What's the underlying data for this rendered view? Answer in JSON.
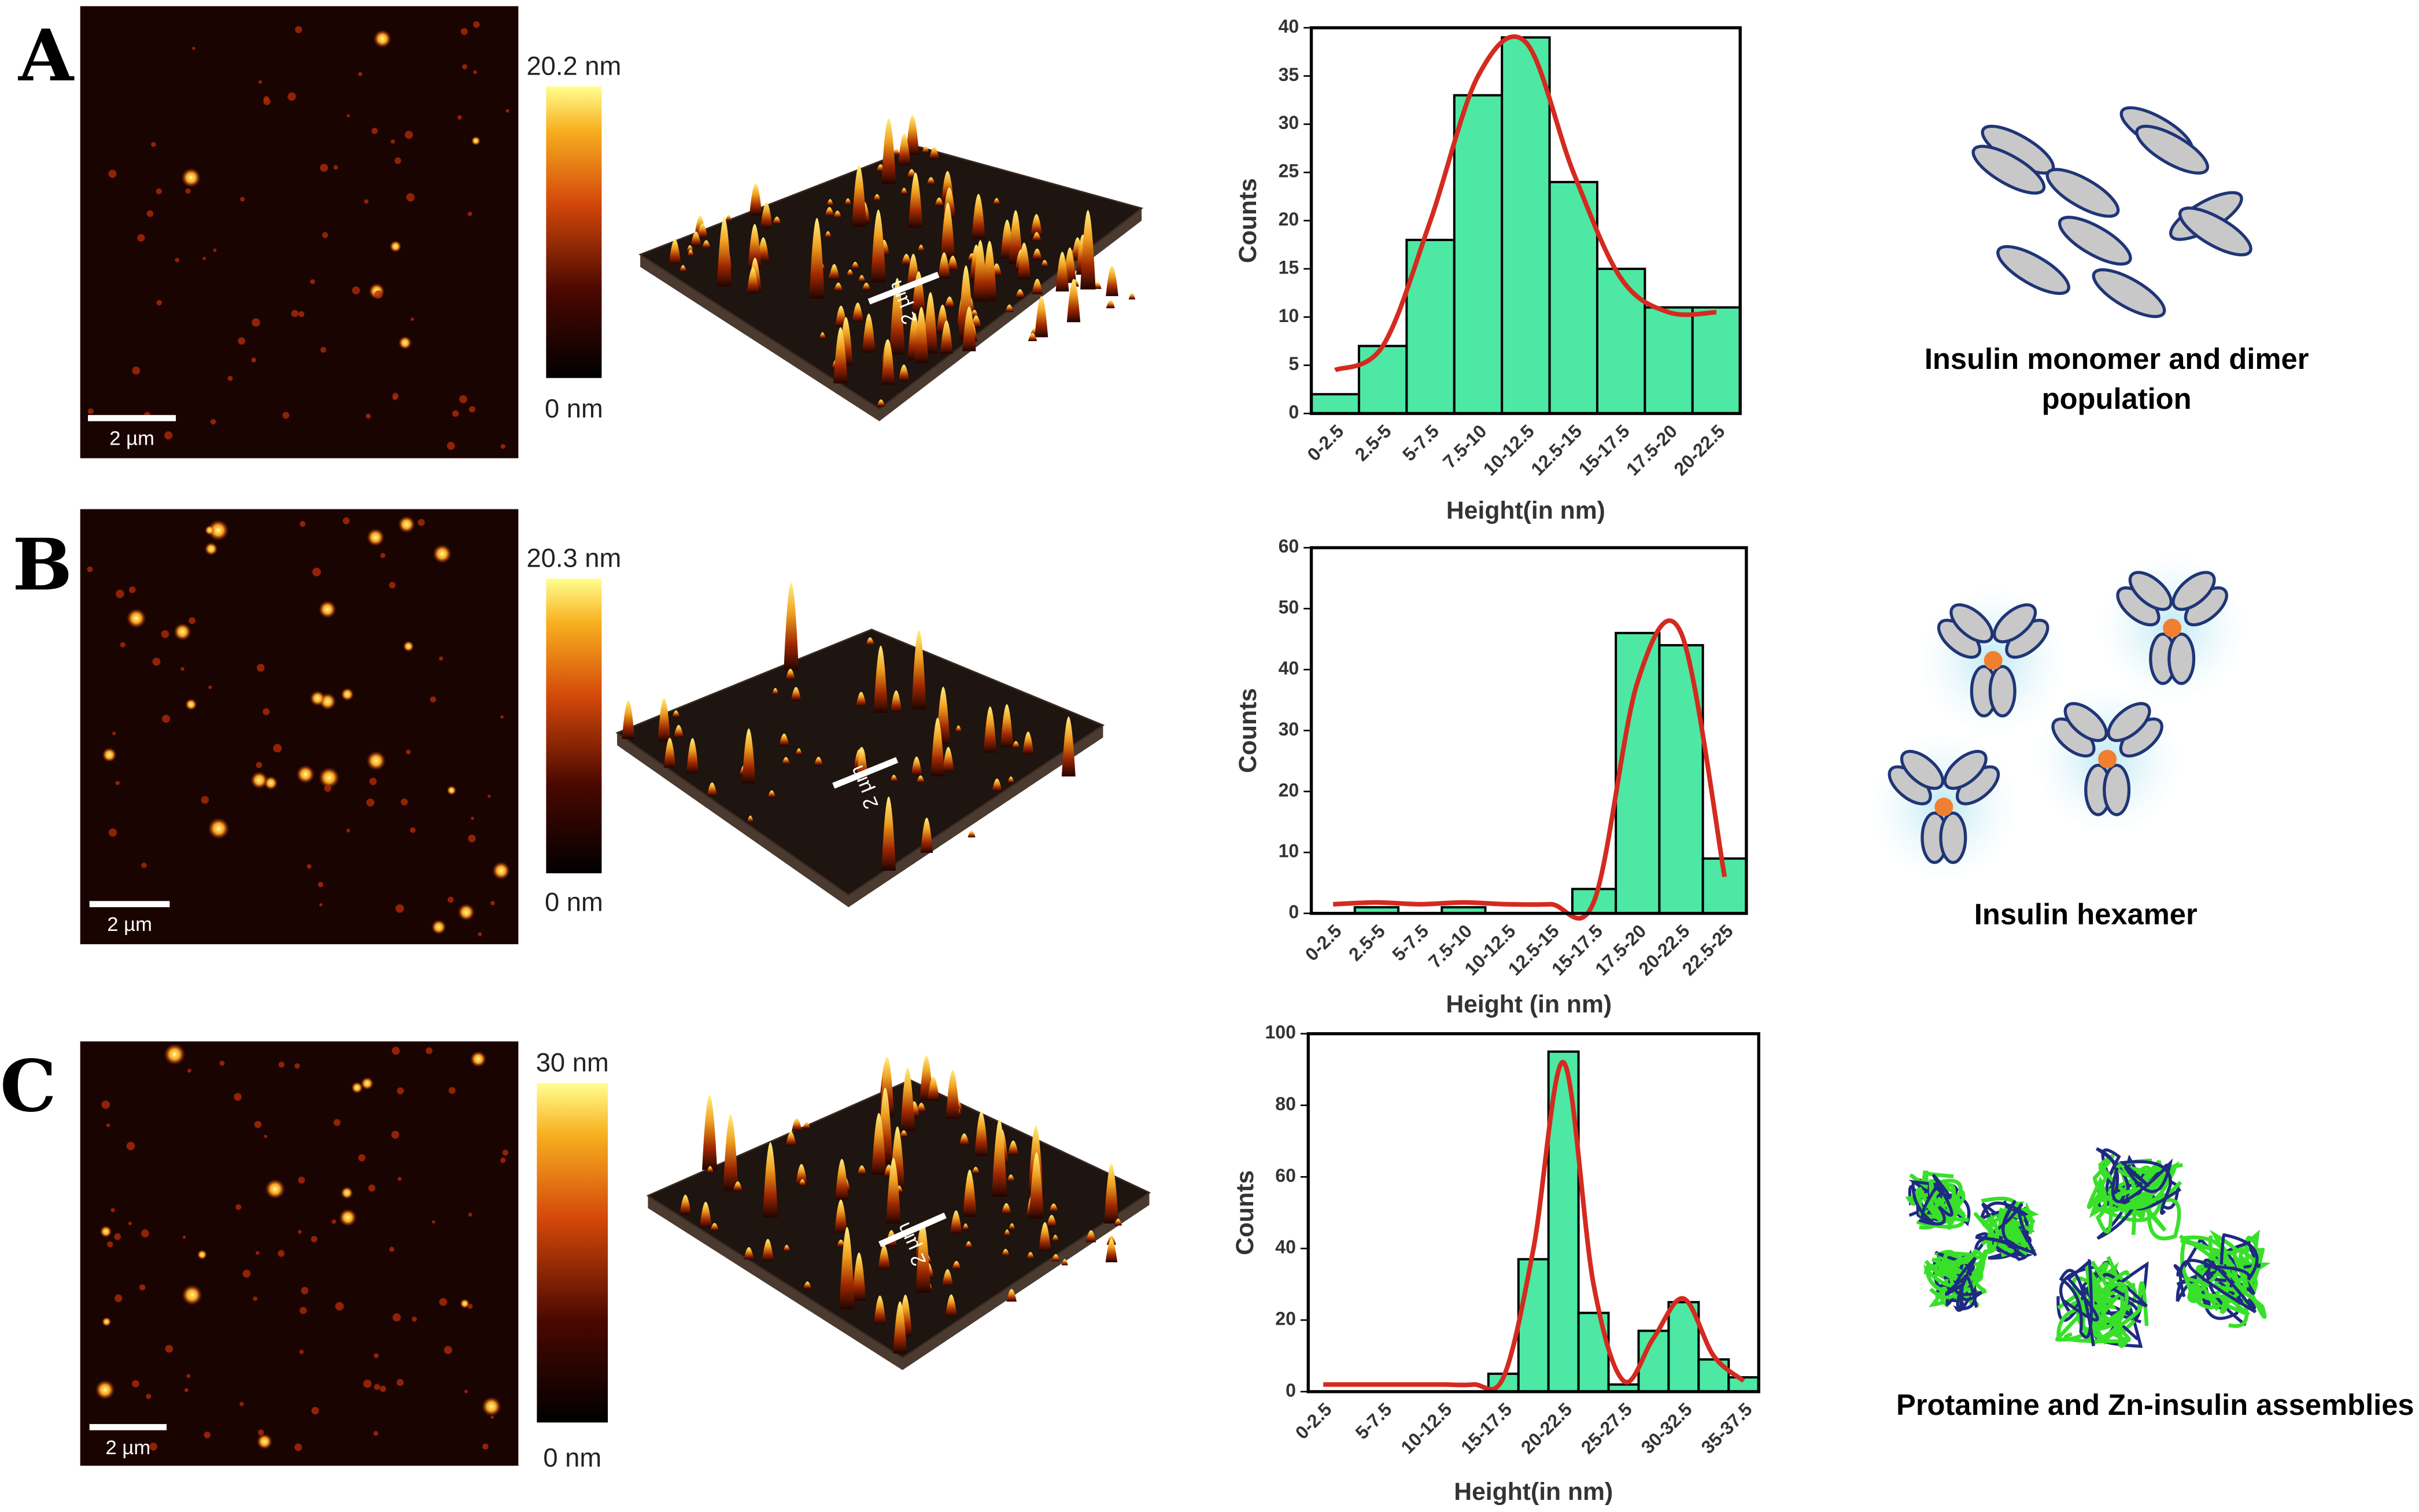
{
  "panels": [
    {
      "label": "A",
      "colorbar_max": "20.2 nm",
      "colorbar_min": "0 nm",
      "scale_bar": "2 µm",
      "scale_bar_3d": "2 µm",
      "caption": [
        "Insulin monomer and dimer",
        "population"
      ]
    },
    {
      "label": "B",
      "colorbar_max": "20.3 nm",
      "colorbar_min": "0 nm",
      "scale_bar": "2 µm",
      "scale_bar_3d": "2 µm",
      "caption": [
        "Insulin hexamer"
      ]
    },
    {
      "label": "C",
      "colorbar_max": "30 nm",
      "colorbar_min": "0 nm",
      "scale_bar": "2 µm",
      "scale_bar_3d": "2 µm",
      "caption": [
        "Protamine and Zn-insulin assemblies"
      ]
    }
  ],
  "chart_data": [
    {
      "type": "bar",
      "x_label": "Height(in nm)",
      "y_label": "Counts",
      "categories": [
        "0-2.5",
        "2.5-5",
        "5-7.5",
        "7.5-10",
        "10-12.5",
        "12.5-15",
        "15-17.5",
        "17.5-20",
        "20-22.5"
      ],
      "series": [
        {
          "type": "bar",
          "color": "#4de8a4",
          "values": [
            2,
            7,
            18,
            33,
            39,
            24,
            15,
            11,
            11
          ]
        },
        {
          "type": "line",
          "color": "#d42a1f",
          "values": [
            4.5,
            7,
            20,
            35,
            38.5,
            25,
            14,
            10.5,
            10.5
          ]
        }
      ],
      "ylim": [
        0,
        40
      ],
      "yticks": [
        0,
        5,
        10,
        15,
        20,
        25,
        30,
        35,
        40
      ]
    },
    {
      "type": "bar",
      "x_label": "Height (in nm)",
      "y_label": "Counts",
      "categories": [
        "0-2.5",
        "2.5-5",
        "5-7.5",
        "7.5-10",
        "10-12.5",
        "12.5-15",
        "15-17.5",
        "17.5-20",
        "20-22.5",
        "22.5-25"
      ],
      "series": [
        {
          "type": "bar",
          "color": "#4de8a4",
          "values": [
            0,
            1,
            0,
            1,
            0,
            0,
            4,
            46,
            44,
            9
          ]
        },
        {
          "type": "line",
          "color": "#d42a1f",
          "values": [
            1.5,
            1.8,
            1.5,
            1.8,
            1.5,
            1.5,
            2,
            38,
            46,
            6
          ]
        }
      ],
      "ylim": [
        0,
        60
      ],
      "yticks": [
        0,
        10,
        20,
        30,
        40,
        50,
        60
      ]
    },
    {
      "type": "bar",
      "x_label": "Height(in nm)",
      "y_label": "Counts",
      "categories": [
        "0-2.5",
        null,
        "5-7.5",
        null,
        "10-12.5",
        null,
        "15-17.5",
        null,
        "20-22.5",
        null,
        "25-27.5",
        null,
        "30-32.5",
        null,
        "35-37.5"
      ],
      "series": [
        {
          "type": "bar",
          "color": "#4de8a4",
          "values": [
            0,
            0,
            0,
            0,
            0,
            0,
            5,
            37,
            95,
            22,
            2,
            17,
            25,
            9,
            4
          ]
        },
        {
          "type": "line",
          "color": "#d42a1f",
          "values": [
            2,
            2,
            2,
            2,
            2,
            2,
            4,
            40,
            92,
            30,
            3,
            15,
            26,
            10,
            3
          ]
        }
      ],
      "ylim": [
        0,
        100
      ],
      "yticks": [
        0,
        20,
        40,
        60,
        80,
        100
      ]
    }
  ]
}
